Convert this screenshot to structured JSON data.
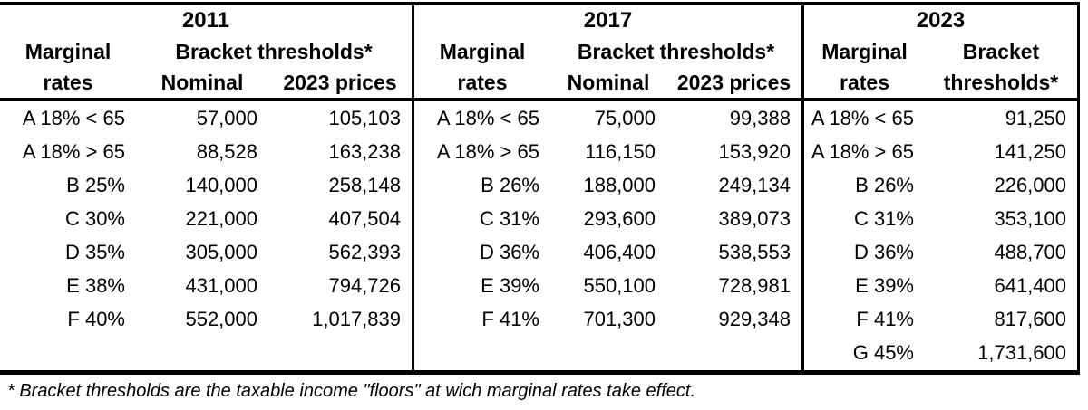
{
  "chart_data": {
    "type": "table",
    "footnote": "* Bracket thresholds are the taxable income \"floors\" at wich marginal rates take effect.",
    "sections": [
      {
        "year": "2011",
        "columns": [
          "rate",
          "nominal",
          "prices2023"
        ],
        "headers": {
          "col1_line1": "Marginal",
          "col1_line2": "rates",
          "group": "Bracket thresholds*",
          "col2": "Nominal",
          "col3": "2023 prices"
        },
        "rows": [
          {
            "rate": "A 18% < 65",
            "nominal": "57,000",
            "prices2023": "105,103"
          },
          {
            "rate": "A 18% > 65",
            "nominal": "88,528",
            "prices2023": "163,238"
          },
          {
            "rate": "B 25%",
            "nominal": "140,000",
            "prices2023": "258,148"
          },
          {
            "rate": "C 30%",
            "nominal": "221,000",
            "prices2023": "407,504"
          },
          {
            "rate": "D 35%",
            "nominal": "305,000",
            "prices2023": "562,393"
          },
          {
            "rate": "E 38%",
            "nominal": "431,000",
            "prices2023": "794,726"
          },
          {
            "rate": "F 40%",
            "nominal": "552,000",
            "prices2023": "1,017,839"
          }
        ]
      },
      {
        "year": "2017",
        "columns": [
          "rate",
          "nominal",
          "prices2023"
        ],
        "headers": {
          "col1_line1": "Marginal",
          "col1_line2": "rates",
          "group": "Bracket thresholds*",
          "col2": "Nominal",
          "col3": "2023 prices"
        },
        "rows": [
          {
            "rate": "A 18% < 65",
            "nominal": "75,000",
            "prices2023": "99,388"
          },
          {
            "rate": "A 18% > 65",
            "nominal": "116,150",
            "prices2023": "153,920"
          },
          {
            "rate": "B 26%",
            "nominal": "188,000",
            "prices2023": "249,134"
          },
          {
            "rate": "C 31%",
            "nominal": "293,600",
            "prices2023": "389,073"
          },
          {
            "rate": "D 36%",
            "nominal": "406,400",
            "prices2023": "538,553"
          },
          {
            "rate": "E 39%",
            "nominal": "550,100",
            "prices2023": "728,981"
          },
          {
            "rate": "F 41%",
            "nominal": "701,300",
            "prices2023": "929,348"
          }
        ]
      },
      {
        "year": "2023",
        "columns": [
          "rate",
          "threshold"
        ],
        "headers": {
          "col1_line1": "Marginal",
          "col1_line2": "rates",
          "col2_line1": "Bracket",
          "col2_line2": "thresholds*"
        },
        "rows": [
          {
            "rate": "A 18% < 65",
            "threshold": "91,250"
          },
          {
            "rate": "A 18% > 65",
            "threshold": "141,250"
          },
          {
            "rate": "B 26%",
            "threshold": "226,000"
          },
          {
            "rate": "C 31%",
            "threshold": "353,100"
          },
          {
            "rate": "D 36%",
            "threshold": "488,700"
          },
          {
            "rate": "E 39%",
            "threshold": "641,400"
          },
          {
            "rate": "F 41%",
            "threshold": "817,600"
          },
          {
            "rate": "G 45%",
            "threshold": "1,731,600"
          }
        ]
      }
    ]
  }
}
